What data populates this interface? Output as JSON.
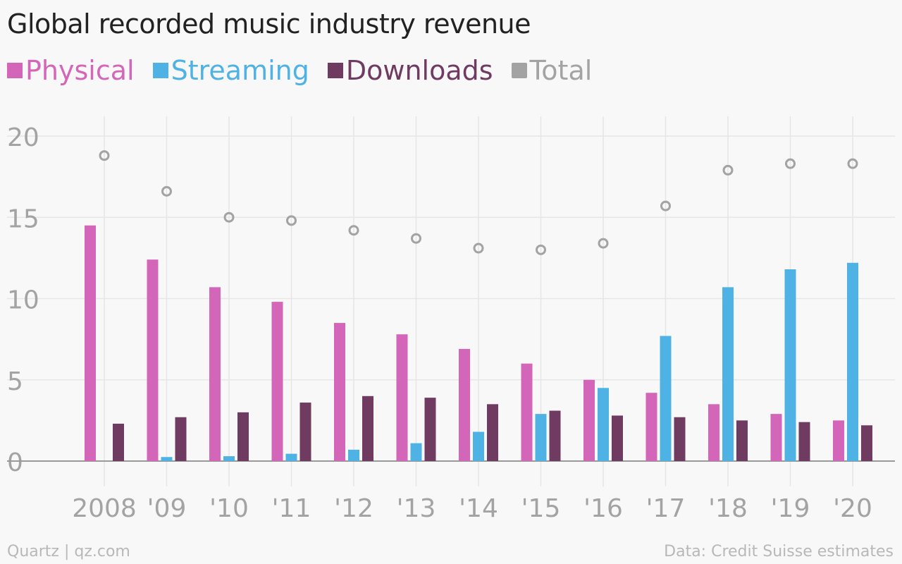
{
  "chart_data": {
    "type": "bar",
    "title": "Global recorded music industry revenue",
    "categories": [
      "2008",
      "'09",
      "'10",
      "'11",
      "'12",
      "'13",
      "'14",
      "'15",
      "'16",
      "'17",
      "'18",
      "'19",
      "'20"
    ],
    "series": [
      {
        "name": "Physical",
        "color": "#d466b9",
        "values": [
          14.5,
          12.4,
          10.7,
          9.8,
          8.5,
          7.8,
          6.9,
          6.0,
          5.0,
          4.2,
          3.5,
          2.9,
          2.5
        ]
      },
      {
        "name": "Streaming",
        "color": "#4fb2e4",
        "values": [
          0,
          0.25,
          0.3,
          0.45,
          0.7,
          1.1,
          1.8,
          2.9,
          4.5,
          7.7,
          10.7,
          11.8,
          12.2
        ]
      },
      {
        "name": "Downloads",
        "color": "#6f3b60",
        "values": [
          2.3,
          2.7,
          3.0,
          3.6,
          4.0,
          3.9,
          3.5,
          3.1,
          2.8,
          2.7,
          2.5,
          2.4,
          2.2
        ]
      },
      {
        "name": "Total",
        "color": "#a3a3a3",
        "type": "scatter",
        "values": [
          18.8,
          16.6,
          15.0,
          14.8,
          14.2,
          13.7,
          13.1,
          13.0,
          13.4,
          15.7,
          17.9,
          18.3,
          18.3
        ]
      }
    ],
    "yticks": [
      0,
      5,
      10,
      15,
      20
    ],
    "ylim": [
      0,
      20
    ],
    "grid": true,
    "legend": "top-left",
    "xlabel": "",
    "ylabel": ""
  },
  "footer": {
    "source_left": "Quartz | qz.com",
    "source_right": "Data: Credit Suisse estimates"
  }
}
